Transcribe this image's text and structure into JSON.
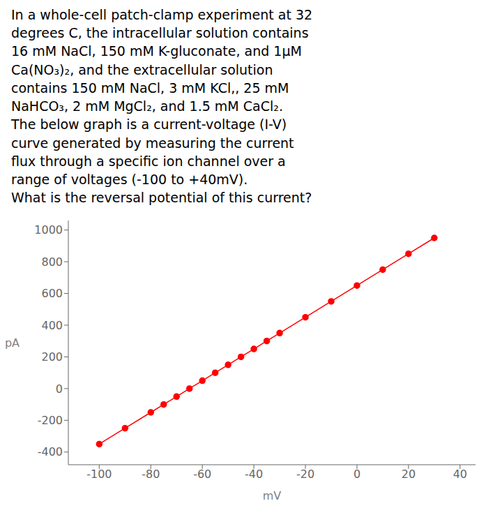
{
  "chart_data": {
    "type": "line",
    "annotations": [
      "In a whole-cell patch-clamp experiment at 32\ndegrees C, the intracellular solution contains\n16 mM NaCl, 150 mM K-gluconate, and 1μM\nCa(NO₃)₂, and the extracellular solution\ncontains 150 mM NaCl, 3 mM KCl,, 25 mM\nNaHCO₃, 2 mM MgCl₂, and 1.5 mM CaCl₂.\nThe below graph is a current-voltage (I-V)\ncurve generated by measuring the current\nflux through a specific ion channel over a\nrange of voltages (-100 to +40mV).\nWhat is the reversal potential of this current?"
    ],
    "xlabel": "mV",
    "ylabel": "pA",
    "x": [
      -100,
      -90,
      -80,
      -75,
      -70,
      -65,
      -60,
      -55,
      -50,
      -45,
      -40,
      -35,
      -30,
      -20,
      -10,
      0,
      10,
      20,
      30
    ],
    "series": [
      {
        "color": "#ff0000",
        "marker": "circle",
        "values": [
          -350,
          -250,
          -150,
          -100,
          -50,
          0,
          50,
          100,
          150,
          200,
          250,
          300,
          350,
          450,
          550,
          650,
          750,
          850,
          950
        ]
      }
    ],
    "xlim": [
      -112,
      46
    ],
    "ylim": [
      -480,
      1060
    ],
    "xticks": [
      -100,
      -80,
      -60,
      -40,
      -20,
      0,
      20,
      40
    ],
    "yticks": [
      -400,
      -200,
      0,
      200,
      400,
      600,
      800,
      1000
    ],
    "grid": false
  }
}
